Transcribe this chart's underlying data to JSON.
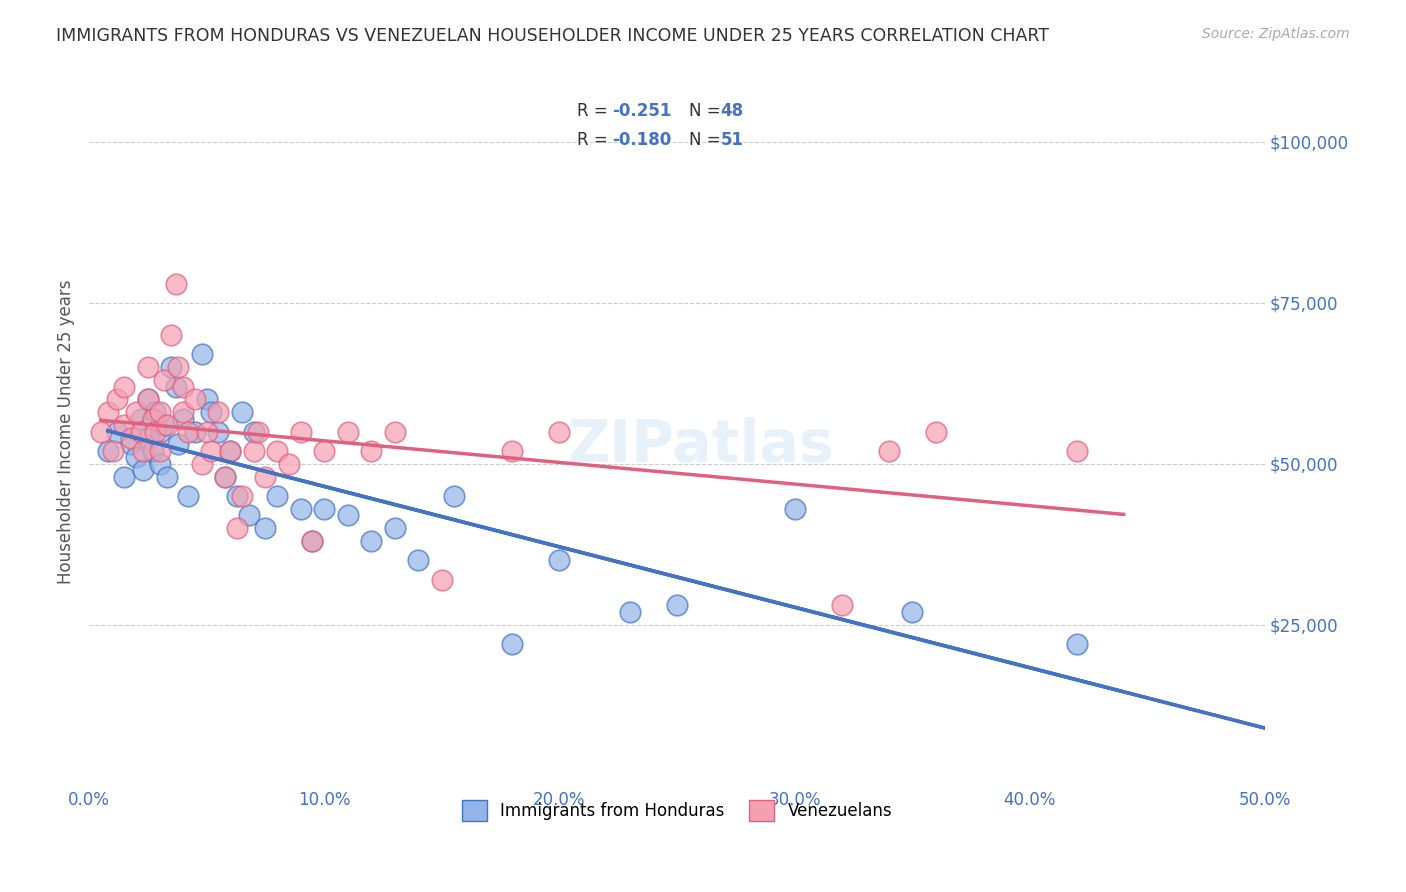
{
  "title": "IMMIGRANTS FROM HONDURAS VS VENEZUELAN HOUSEHOLDER INCOME UNDER 25 YEARS CORRELATION CHART",
  "source": "Source: ZipAtlas.com",
  "xlabel": "",
  "ylabel": "Householder Income Under 25 years",
  "xlim": [
    0,
    0.5
  ],
  "ylim": [
    0,
    110000
  ],
  "xtick_labels": [
    "0.0%",
    "10.0%",
    "20.0%",
    "30.0%",
    "40.0%",
    "50.0%"
  ],
  "xtick_values": [
    0.0,
    0.1,
    0.2,
    0.3,
    0.4,
    0.5
  ],
  "ytick_labels": [
    "$25,000",
    "$50,000",
    "$75,000",
    "$100,000"
  ],
  "ytick_values": [
    25000,
    50000,
    75000,
    100000
  ],
  "r_honduras": -0.251,
  "n_honduras": 48,
  "r_venezuela": -0.18,
  "n_venezuela": 51,
  "color_honduras": "#92b4e8",
  "color_venezuela": "#f4a0b0",
  "color_honduras_line": "#4472c4",
  "color_venezuela_line": "#e06080",
  "color_axis_labels": "#4472c4",
  "color_title": "#333333",
  "background_color": "#ffffff",
  "watermark": "ZIPatlas",
  "legend_label_honduras": "Immigrants from Honduras",
  "legend_label_venezuela": "Venezuelans",
  "honduras_x": [
    0.008,
    0.012,
    0.015,
    0.018,
    0.02,
    0.022,
    0.023,
    0.025,
    0.025,
    0.027,
    0.028,
    0.03,
    0.03,
    0.032,
    0.033,
    0.035,
    0.037,
    0.038,
    0.04,
    0.042,
    0.045,
    0.048,
    0.05,
    0.052,
    0.055,
    0.058,
    0.06,
    0.063,
    0.065,
    0.068,
    0.07,
    0.075,
    0.08,
    0.09,
    0.095,
    0.1,
    0.11,
    0.12,
    0.13,
    0.14,
    0.155,
    0.18,
    0.2,
    0.23,
    0.25,
    0.3,
    0.35,
    0.42
  ],
  "honduras_y": [
    52000,
    55000,
    48000,
    53000,
    51000,
    57000,
    49000,
    60000,
    54000,
    52000,
    58000,
    50000,
    55000,
    56000,
    48000,
    65000,
    62000,
    53000,
    57000,
    45000,
    55000,
    67000,
    60000,
    58000,
    55000,
    48000,
    52000,
    45000,
    58000,
    42000,
    55000,
    40000,
    45000,
    43000,
    38000,
    43000,
    42000,
    38000,
    40000,
    35000,
    45000,
    22000,
    35000,
    27000,
    28000,
    43000,
    27000,
    22000
  ],
  "venezuela_x": [
    0.005,
    0.008,
    0.01,
    0.012,
    0.015,
    0.015,
    0.018,
    0.02,
    0.022,
    0.023,
    0.025,
    0.025,
    0.027,
    0.028,
    0.03,
    0.03,
    0.032,
    0.033,
    0.035,
    0.037,
    0.038,
    0.04,
    0.04,
    0.042,
    0.045,
    0.048,
    0.05,
    0.052,
    0.055,
    0.058,
    0.06,
    0.063,
    0.065,
    0.07,
    0.072,
    0.075,
    0.08,
    0.085,
    0.09,
    0.095,
    0.1,
    0.11,
    0.12,
    0.13,
    0.15,
    0.18,
    0.2,
    0.32,
    0.34,
    0.36,
    0.42
  ],
  "venezuela_y": [
    55000,
    58000,
    52000,
    60000,
    56000,
    62000,
    54000,
    58000,
    55000,
    52000,
    65000,
    60000,
    57000,
    55000,
    58000,
    52000,
    63000,
    56000,
    70000,
    78000,
    65000,
    62000,
    58000,
    55000,
    60000,
    50000,
    55000,
    52000,
    58000,
    48000,
    52000,
    40000,
    45000,
    52000,
    55000,
    48000,
    52000,
    50000,
    55000,
    38000,
    52000,
    55000,
    52000,
    55000,
    32000,
    52000,
    55000,
    28000,
    52000,
    55000,
    52000
  ]
}
